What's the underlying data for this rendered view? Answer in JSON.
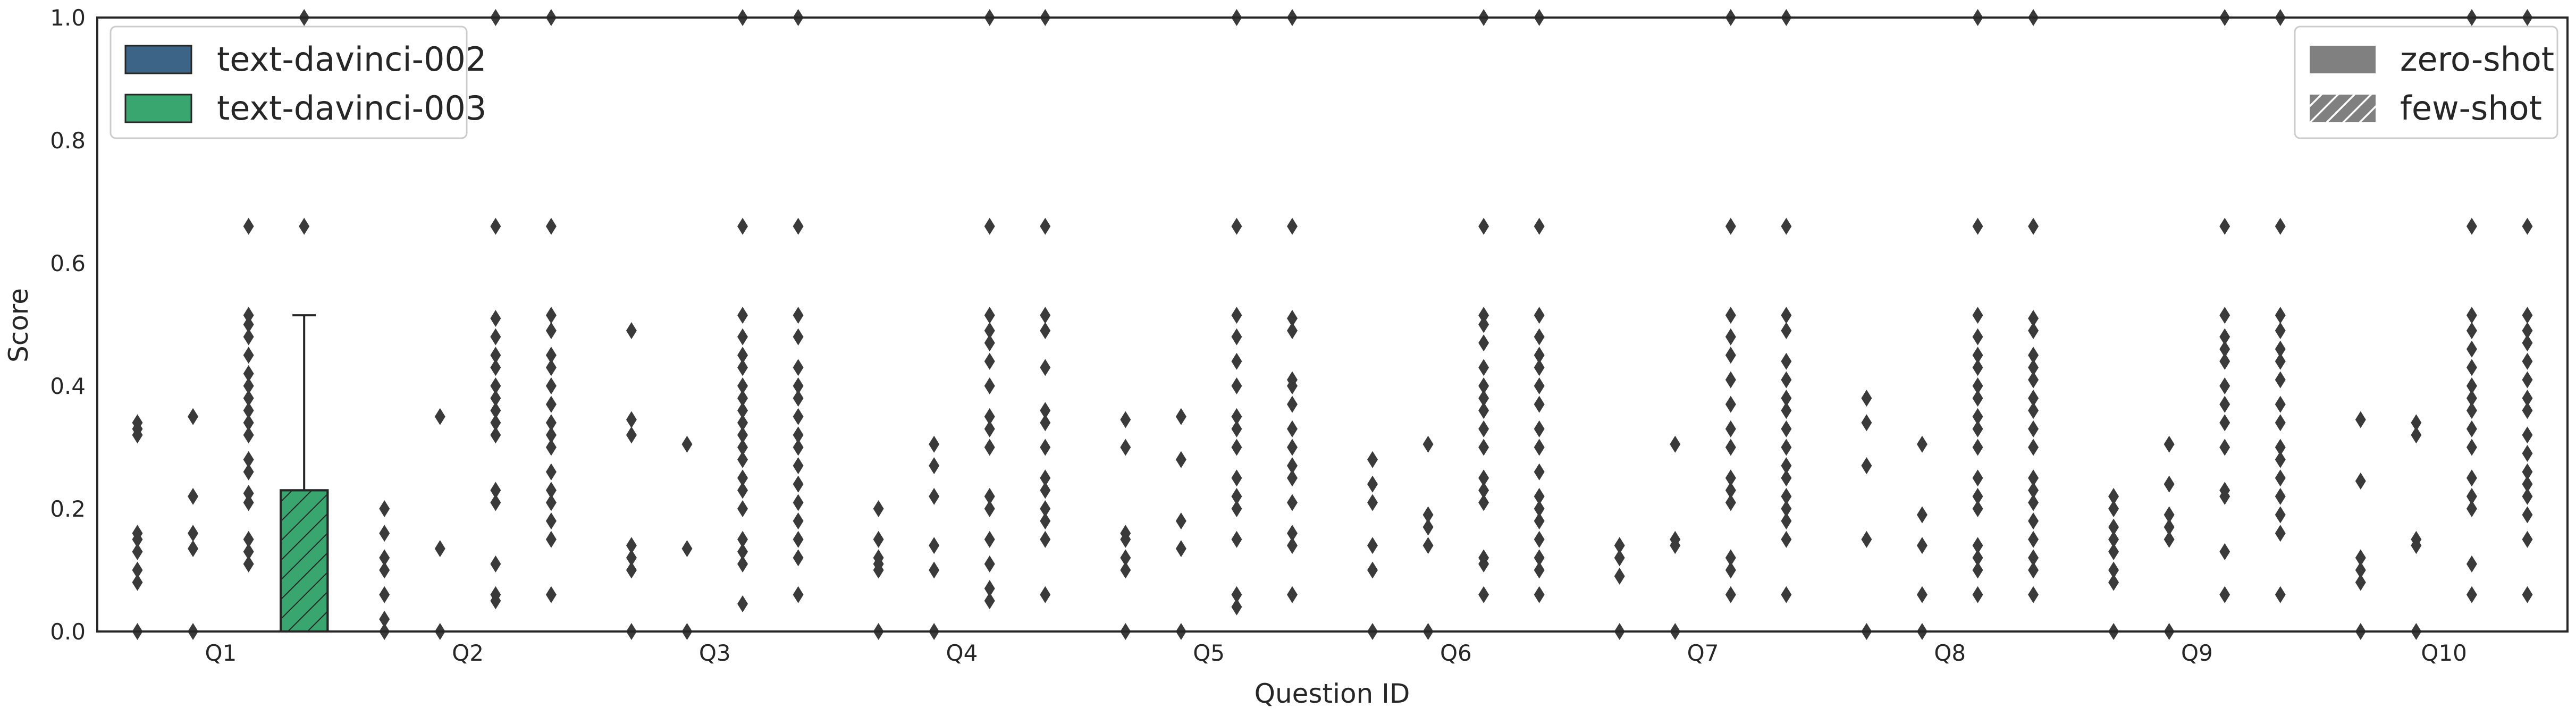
{
  "chart_data": {
    "type": "box",
    "xlabel": "Question ID",
    "ylabel": "Score",
    "ylim": [
      0,
      1.0
    ],
    "yticks": [
      "0.0",
      "0.2",
      "0.4",
      "0.6",
      "0.8",
      "1.0"
    ],
    "categories": [
      "Q1",
      "Q2",
      "Q3",
      "Q4",
      "Q5",
      "Q6",
      "Q7",
      "Q8",
      "Q9",
      "Q10"
    ],
    "grid": false,
    "series": [
      {
        "name": "text-davinci-002",
        "color": "#3b6486",
        "pattern": "zero-shot"
      },
      {
        "name": "text-davinci-002",
        "color": "#3b6486",
        "pattern": "few-shot"
      },
      {
        "name": "text-davinci-003",
        "color": "#3aa66f",
        "pattern": "zero-shot"
      },
      {
        "name": "text-davinci-003",
        "color": "#3aa66f",
        "pattern": "few-shot"
      }
    ],
    "boxes": [
      {
        "category": "Q1",
        "series": 3,
        "q1": 0.0,
        "median": 0.0,
        "q3": 0.23,
        "whisker_low": 0.0,
        "whisker_high": 0.515
      }
    ],
    "outliers": [
      [
        [
          0.0,
          0.08,
          0.1,
          0.13,
          0.15,
          0.16,
          0.32,
          0.33,
          0.34
        ],
        [
          0.0,
          0.135,
          0.16,
          0.22,
          0.35
        ],
        [
          0.11,
          0.13,
          0.15,
          0.21,
          0.225,
          0.26,
          0.28,
          0.32,
          0.34,
          0.36,
          0.38,
          0.4,
          0.42,
          0.45,
          0.48,
          0.5,
          0.515,
          0.66
        ],
        [
          0.66,
          1.0
        ]
      ],
      [
        [
          0.0,
          0.02,
          0.06,
          0.1,
          0.12,
          0.16,
          0.2
        ],
        [
          0.0,
          0.135,
          0.35
        ],
        [
          0.05,
          0.06,
          0.11,
          0.21,
          0.23,
          0.32,
          0.34,
          0.36,
          0.38,
          0.4,
          0.43,
          0.45,
          0.48,
          0.51,
          0.66,
          1.0
        ],
        [
          0.06,
          0.15,
          0.18,
          0.21,
          0.23,
          0.26,
          0.3,
          0.32,
          0.34,
          0.37,
          0.4,
          0.43,
          0.45,
          0.49,
          0.515,
          0.66,
          1.0
        ]
      ],
      [
        [
          0.0,
          0.1,
          0.12,
          0.14,
          0.32,
          0.345,
          0.49
        ],
        [
          0.0,
          0.135,
          0.305
        ],
        [
          0.045,
          0.11,
          0.13,
          0.15,
          0.2,
          0.23,
          0.25,
          0.28,
          0.3,
          0.32,
          0.34,
          0.36,
          0.38,
          0.4,
          0.43,
          0.45,
          0.48,
          0.515,
          0.66,
          1.0
        ],
        [
          0.06,
          0.12,
          0.15,
          0.18,
          0.21,
          0.24,
          0.27,
          0.3,
          0.32,
          0.35,
          0.38,
          0.4,
          0.43,
          0.48,
          0.515,
          0.66,
          1.0
        ]
      ],
      [
        [
          0.0,
          0.1,
          0.11,
          0.12,
          0.15,
          0.2
        ],
        [
          0.0,
          0.1,
          0.14,
          0.22,
          0.27,
          0.305
        ],
        [
          0.05,
          0.07,
          0.11,
          0.15,
          0.2,
          0.22,
          0.3,
          0.33,
          0.35,
          0.4,
          0.44,
          0.47,
          0.49,
          0.515,
          0.66,
          1.0
        ],
        [
          0.06,
          0.15,
          0.18,
          0.2,
          0.23,
          0.25,
          0.3,
          0.34,
          0.36,
          0.43,
          0.49,
          0.515,
          0.66,
          1.0
        ]
      ],
      [
        [
          0.0,
          0.1,
          0.12,
          0.15,
          0.16,
          0.3,
          0.345
        ],
        [
          0.0,
          0.135,
          0.18,
          0.28,
          0.35
        ],
        [
          0.04,
          0.06,
          0.15,
          0.2,
          0.22,
          0.25,
          0.3,
          0.33,
          0.35,
          0.4,
          0.44,
          0.48,
          0.515,
          0.66,
          1.0
        ],
        [
          0.06,
          0.14,
          0.16,
          0.21,
          0.25,
          0.27,
          0.3,
          0.33,
          0.37,
          0.4,
          0.41,
          0.49,
          0.51,
          0.66,
          1.0
        ]
      ],
      [
        [
          0.0,
          0.1,
          0.14,
          0.21,
          0.24,
          0.28
        ],
        [
          0.0,
          0.14,
          0.17,
          0.19,
          0.305
        ],
        [
          0.06,
          0.11,
          0.12,
          0.21,
          0.23,
          0.25,
          0.3,
          0.33,
          0.36,
          0.38,
          0.4,
          0.43,
          0.47,
          0.5,
          0.515,
          0.66,
          1.0
        ],
        [
          0.06,
          0.1,
          0.12,
          0.15,
          0.18,
          0.2,
          0.22,
          0.26,
          0.3,
          0.33,
          0.37,
          0.4,
          0.43,
          0.45,
          0.48,
          0.515,
          0.66,
          1.0
        ]
      ],
      [
        [
          0.0,
          0.09,
          0.12,
          0.14
        ],
        [
          0.0,
          0.14,
          0.15,
          0.305
        ],
        [
          0.06,
          0.1,
          0.12,
          0.21,
          0.23,
          0.25,
          0.3,
          0.33,
          0.37,
          0.41,
          0.45,
          0.48,
          0.515,
          0.66,
          1.0
        ],
        [
          0.06,
          0.15,
          0.18,
          0.2,
          0.22,
          0.25,
          0.27,
          0.3,
          0.33,
          0.36,
          0.38,
          0.41,
          0.44,
          0.49,
          0.515,
          0.66,
          1.0
        ]
      ],
      [
        [
          0.0,
          0.15,
          0.27,
          0.34,
          0.38
        ],
        [
          0.0,
          0.06,
          0.14,
          0.19,
          0.305
        ],
        [
          0.06,
          0.1,
          0.12,
          0.14,
          0.2,
          0.22,
          0.25,
          0.3,
          0.33,
          0.35,
          0.38,
          0.4,
          0.43,
          0.45,
          0.48,
          0.515,
          0.66,
          1.0
        ],
        [
          0.06,
          0.1,
          0.12,
          0.15,
          0.18,
          0.21,
          0.23,
          0.25,
          0.3,
          0.33,
          0.36,
          0.38,
          0.41,
          0.43,
          0.45,
          0.49,
          0.51,
          0.66,
          1.0
        ]
      ],
      [
        [
          0.0,
          0.08,
          0.1,
          0.13,
          0.15,
          0.17,
          0.2,
          0.22
        ],
        [
          0.0,
          0.15,
          0.17,
          0.19,
          0.24,
          0.305
        ],
        [
          0.06,
          0.13,
          0.22,
          0.23,
          0.3,
          0.34,
          0.37,
          0.4,
          0.44,
          0.46,
          0.48,
          0.515,
          0.66,
          1.0
        ],
        [
          0.06,
          0.16,
          0.19,
          0.22,
          0.25,
          0.28,
          0.3,
          0.34,
          0.37,
          0.41,
          0.44,
          0.46,
          0.49,
          0.515,
          0.66,
          1.0
        ]
      ],
      [
        [
          0.0,
          0.08,
          0.1,
          0.12,
          0.245,
          0.345
        ],
        [
          0.0,
          0.14,
          0.15,
          0.32,
          0.34
        ],
        [
          0.06,
          0.11,
          0.2,
          0.22,
          0.25,
          0.3,
          0.33,
          0.36,
          0.38,
          0.4,
          0.43,
          0.46,
          0.49,
          0.515,
          0.66,
          1.0
        ],
        [
          0.06,
          0.15,
          0.19,
          0.22,
          0.24,
          0.26,
          0.29,
          0.32,
          0.36,
          0.38,
          0.41,
          0.44,
          0.47,
          0.49,
          0.515,
          0.66,
          1.0
        ]
      ]
    ],
    "legend_models": {
      "position": "upper-left",
      "items": [
        {
          "label": "text-davinci-002",
          "color": "#3b6486"
        },
        {
          "label": "text-davinci-003",
          "color": "#3aa66f"
        }
      ]
    },
    "legend_shots": {
      "position": "upper-right",
      "items": [
        {
          "label": "zero-shot",
          "hatch": false
        },
        {
          "label": "few-shot",
          "hatch": true
        }
      ]
    }
  }
}
